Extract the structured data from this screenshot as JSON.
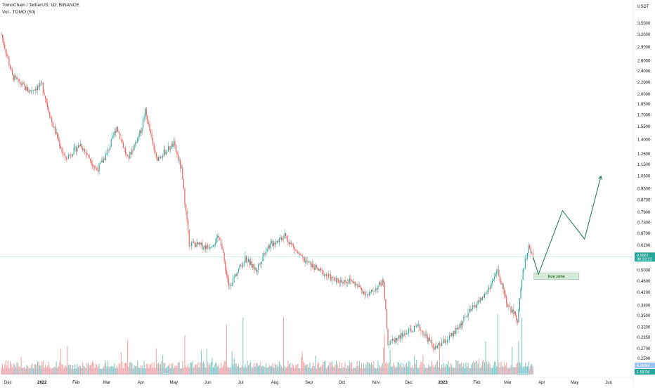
{
  "legend": {
    "symbol_line": "TomoChain / TetherUS, 1D, BINANCE",
    "volume_line": "Vol · TOMO (50)"
  },
  "colors": {
    "up": "#26a69a",
    "down": "#ef5350",
    "volume_up": "#80cbc4",
    "volume_down": "#f5a6a6",
    "volume_ma": "#c5d9f5",
    "projection": "#2e7d5b",
    "price_line": "#b2dfdb",
    "zone_fill": "#d7ead9",
    "zone_border": "#7cb08a"
  },
  "chart_data": {
    "type": "candlestick",
    "title": "TomoChain / TetherUS, 1D, BINANCE",
    "y_unit": "USDT",
    "y_scale": "log",
    "y_ticks": [
      "3.5000",
      "3.2000",
      "2.9000",
      "2.6000",
      "2.4000",
      "2.2000",
      "2.0000",
      "1.8500",
      "1.7000",
      "1.5500",
      "1.4000",
      "1.2500",
      "1.1500",
      "1.0500",
      "0.9500",
      "0.8700",
      "0.7900",
      "0.7300",
      "0.6700",
      "0.6100",
      "0.5000",
      "0.4600",
      "0.4200",
      "0.3800",
      "0.3500",
      "0.3200",
      "0.2950",
      "0.2700",
      "0.2500"
    ],
    "x_ticks": [
      {
        "label": "Dec",
        "bold": false
      },
      {
        "label": "2022",
        "bold": true
      },
      {
        "label": "Feb",
        "bold": false
      },
      {
        "label": "Mar",
        "bold": false
      },
      {
        "label": "Apr",
        "bold": false
      },
      {
        "label": "May",
        "bold": false
      },
      {
        "label": "Jun",
        "bold": false
      },
      {
        "label": "Jul",
        "bold": false
      },
      {
        "label": "Aug",
        "bold": false
      },
      {
        "label": "Sep",
        "bold": false
      },
      {
        "label": "Oct",
        "bold": false
      },
      {
        "label": "Nov",
        "bold": false
      },
      {
        "label": "Dec",
        "bold": false
      },
      {
        "label": "2023",
        "bold": true
      },
      {
        "label": "Feb",
        "bold": false
      },
      {
        "label": "Mar",
        "bold": false
      },
      {
        "label": "Apr",
        "bold": false
      },
      {
        "label": "May",
        "bold": false
      },
      {
        "label": "Jun",
        "bold": false
      }
    ],
    "approx_close_path": [
      {
        "date": "2021-11-25",
        "close": 3.2
      },
      {
        "date": "2021-12-05",
        "close": 2.3
      },
      {
        "date": "2021-12-20",
        "close": 2.05
      },
      {
        "date": "2022-01-01",
        "close": 2.15
      },
      {
        "date": "2022-01-10",
        "close": 1.6
      },
      {
        "date": "2022-01-22",
        "close": 1.2
      },
      {
        "date": "2022-02-05",
        "close": 1.35
      },
      {
        "date": "2022-02-20",
        "close": 1.1
      },
      {
        "date": "2022-03-01",
        "close": 1.25
      },
      {
        "date": "2022-03-10",
        "close": 1.55
      },
      {
        "date": "2022-03-20",
        "close": 1.2
      },
      {
        "date": "2022-04-01",
        "close": 1.5
      },
      {
        "date": "2022-04-05",
        "close": 1.75
      },
      {
        "date": "2022-04-15",
        "close": 1.2
      },
      {
        "date": "2022-05-01",
        "close": 1.35
      },
      {
        "date": "2022-05-08",
        "close": 1.1
      },
      {
        "date": "2022-05-15",
        "close": 0.62
      },
      {
        "date": "2022-06-01",
        "close": 0.6
      },
      {
        "date": "2022-06-12",
        "close": 0.65
      },
      {
        "date": "2022-06-20",
        "close": 0.44
      },
      {
        "date": "2022-07-05",
        "close": 0.55
      },
      {
        "date": "2022-07-15",
        "close": 0.5
      },
      {
        "date": "2022-07-25",
        "close": 0.6
      },
      {
        "date": "2022-08-10",
        "close": 0.66
      },
      {
        "date": "2022-08-25",
        "close": 0.55
      },
      {
        "date": "2022-09-10",
        "close": 0.5
      },
      {
        "date": "2022-09-25",
        "close": 0.46
      },
      {
        "date": "2022-10-10",
        "close": 0.46
      },
      {
        "date": "2022-10-25",
        "close": 0.41
      },
      {
        "date": "2022-11-08",
        "close": 0.46
      },
      {
        "date": "2022-11-12",
        "close": 0.28
      },
      {
        "date": "2022-11-25",
        "close": 0.3
      },
      {
        "date": "2022-12-10",
        "close": 0.32
      },
      {
        "date": "2022-12-25",
        "close": 0.27
      },
      {
        "date": "2023-01-10",
        "close": 0.3
      },
      {
        "date": "2023-01-25",
        "close": 0.36
      },
      {
        "date": "2023-02-10",
        "close": 0.42
      },
      {
        "date": "2023-02-20",
        "close": 0.5
      },
      {
        "date": "2023-03-01",
        "close": 0.38
      },
      {
        "date": "2023-03-10",
        "close": 0.34
      },
      {
        "date": "2023-03-15",
        "close": 0.5
      },
      {
        "date": "2023-03-20",
        "close": 0.6
      },
      {
        "date": "2023-03-24",
        "close": 0.5567
      }
    ],
    "projection_path": [
      {
        "date": "2023-03-24",
        "price": 0.5567
      },
      {
        "date": "2023-03-29",
        "price": 0.485
      },
      {
        "date": "2023-04-20",
        "price": 0.8
      },
      {
        "date": "2023-05-10",
        "price": 0.64
      },
      {
        "date": "2023-05-25",
        "price": 1.05
      }
    ],
    "buy_zone": {
      "label": "buy zone",
      "from": "2023-03-25",
      "to": "2023-05-05",
      "low": 0.465,
      "high": 0.49
    },
    "last_price": {
      "value": "0.5567",
      "countdown": "08:33:23"
    },
    "volume_badges": {
      "ma": "4.265M",
      "volume": "1.557M"
    }
  }
}
